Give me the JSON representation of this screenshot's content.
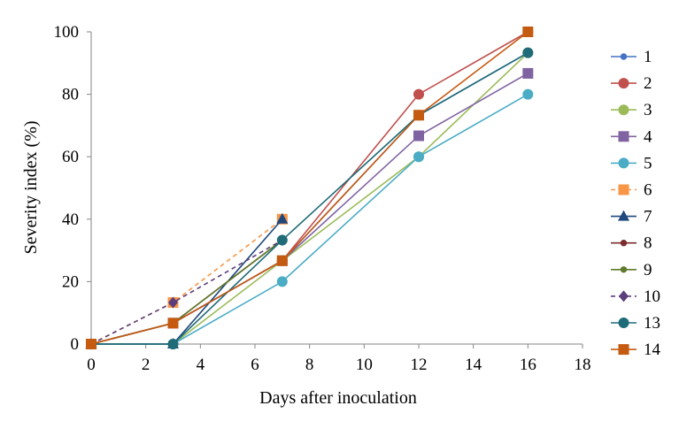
{
  "chart_data": {
    "type": "line",
    "title": "",
    "xlabel": "Days after inoculation",
    "ylabel": "Severity index (%)",
    "xlim": [
      0,
      18
    ],
    "ylim": [
      0,
      100
    ],
    "x_ticks": [
      "0",
      "2",
      "4",
      "6",
      "8",
      "10",
      "12",
      "14",
      "16",
      "18"
    ],
    "y_ticks": [
      "0",
      "20",
      "40",
      "60",
      "80",
      "100"
    ],
    "grid": false,
    "legend_position": "right",
    "series": [
      {
        "name": "1",
        "color": "#4472c4",
        "marker": "circle-small",
        "dashed": false,
        "x": [
          0,
          3,
          7,
          12,
          16
        ],
        "y": [
          0,
          6.7,
          26.7,
          73.3,
          93.3
        ]
      },
      {
        "name": "2",
        "color": "#c0504d",
        "marker": "circle",
        "dashed": false,
        "x": [
          0,
          3,
          7,
          12,
          16
        ],
        "y": [
          0,
          6.7,
          26.7,
          80,
          100
        ]
      },
      {
        "name": "3",
        "color": "#9bbb59",
        "marker": "circle",
        "dashed": false,
        "x": [
          0,
          3,
          7,
          12,
          16
        ],
        "y": [
          0,
          0,
          26.7,
          60,
          93.3
        ]
      },
      {
        "name": "4",
        "color": "#8064a2",
        "marker": "square",
        "dashed": false,
        "x": [
          0,
          3,
          7,
          12,
          16
        ],
        "y": [
          0,
          6.7,
          26.7,
          66.7,
          86.7
        ]
      },
      {
        "name": "5",
        "color": "#4bacc6",
        "marker": "circle",
        "dashed": false,
        "x": [
          0,
          3,
          7,
          12,
          16
        ],
        "y": [
          0,
          0,
          20,
          60,
          80
        ]
      },
      {
        "name": "6",
        "color": "#f79646",
        "marker": "square",
        "dashed": true,
        "x": [
          0,
          3,
          7
        ],
        "y": [
          0,
          13.3,
          40
        ]
      },
      {
        "name": "7",
        "color": "#1f497d",
        "marker": "triangle",
        "dashed": false,
        "x": [
          0,
          3,
          7
        ],
        "y": [
          0,
          0,
          40
        ]
      },
      {
        "name": "8",
        "color": "#7b2c2c",
        "marker": "circle-small",
        "dashed": false,
        "x": [
          0,
          3,
          7
        ],
        "y": [
          0,
          6.7,
          33.3
        ]
      },
      {
        "name": "9",
        "color": "#5f7a2c",
        "marker": "circle-small",
        "dashed": false,
        "x": [
          0,
          3,
          7
        ],
        "y": [
          0,
          6.7,
          33.3
        ]
      },
      {
        "name": "10",
        "color": "#5c3f7a",
        "marker": "diamond",
        "dashed": true,
        "x": [
          0,
          3,
          7
        ],
        "y": [
          0,
          13.3,
          33.3
        ]
      },
      {
        "name": "13",
        "color": "#1f6b78",
        "marker": "circle",
        "dashed": false,
        "x": [
          0,
          3,
          7,
          12,
          16
        ],
        "y": [
          0,
          0,
          33.3,
          73.3,
          93.3
        ]
      },
      {
        "name": "14",
        "color": "#c55a11",
        "marker": "square",
        "dashed": false,
        "x": [
          0,
          3,
          7,
          12,
          16
        ],
        "y": [
          0,
          6.7,
          26.7,
          73.3,
          100
        ]
      }
    ]
  }
}
